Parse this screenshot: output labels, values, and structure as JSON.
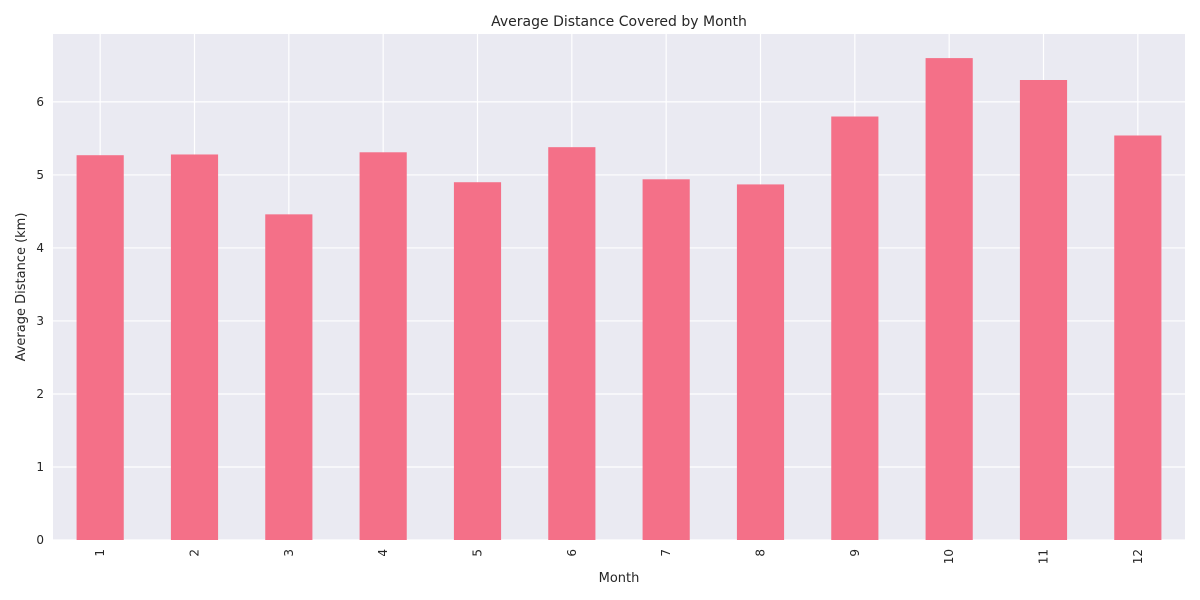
{
  "chart_data": {
    "type": "bar",
    "title": "Average Distance Covered by Month",
    "xlabel": "Month",
    "ylabel": "Average Distance (km)",
    "categories": [
      "1",
      "2",
      "3",
      "4",
      "5",
      "6",
      "7",
      "8",
      "9",
      "10",
      "11",
      "12"
    ],
    "values": [
      5.27,
      5.28,
      4.46,
      5.31,
      4.9,
      5.38,
      4.94,
      4.87,
      5.8,
      6.6,
      6.3,
      5.54
    ],
    "ylim": [
      0,
      6.93
    ],
    "yticks": [
      "0",
      "1",
      "2",
      "3",
      "4",
      "5",
      "6"
    ],
    "grid": true,
    "colors": {
      "bar": "#f47088",
      "plot_background": "#eaeaf2",
      "grid": "#ffffff"
    }
  }
}
